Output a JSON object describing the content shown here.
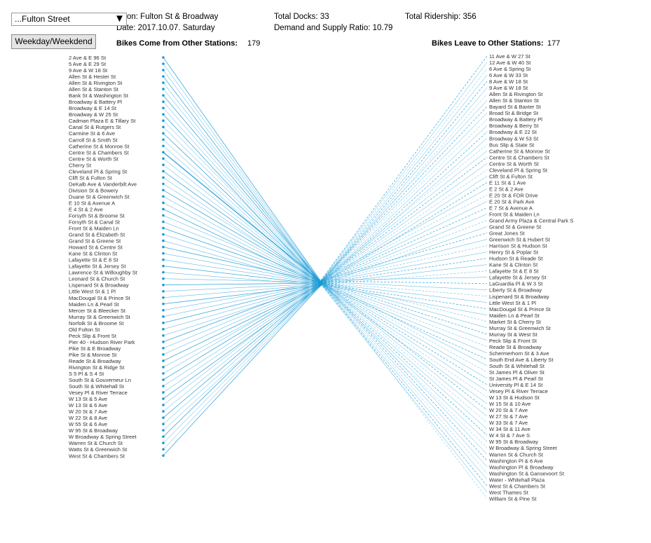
{
  "controls": {
    "station_select_value": "...Fulton Street",
    "dropdown_arrow": "▼",
    "toggle_button_label": "Weekday/Weekdend"
  },
  "info": {
    "station_line": "on: Fulton St & Broadway",
    "date_line": "Date: 2017.10.07. Saturday",
    "docks_line": "Total Docks: 33",
    "ratio_line": "Demand and Supply Ratio: 10.79",
    "ridership_line": "Total Ridership: 356"
  },
  "panels": {
    "incoming_header": "Bikes Come from Other Stations:",
    "incoming_count": "179",
    "outgoing_header": "Bikes Leave to Other Stations:",
    "outgoing_count": "177"
  },
  "colors": {
    "line": "#1a9bd6",
    "dot": "#1a9bd6"
  },
  "incoming_stations": [
    "2 Ave & E 96 St",
    "5 Ave & E 29 St",
    "9 Ave & W 18 St",
    "Allen St & Hester St",
    "Allen St & Rivington St",
    "Allen St & Stanton St",
    "Bank St & Washington St",
    "Broadway & Battery Pl",
    "Broadway & E 14 St",
    "Broadway & W 25 St",
    "Cadman Plaza E & Tillary St",
    "Canal St & Rutgers St",
    "Carmine St & 6 Ave",
    "Carroll St & Smith St",
    "Catherine St & Monroe St",
    "Centre St & Chambers St",
    "Centre St & Worth St",
    "Cherry St",
    "Cleveland Pl & Spring St",
    "Clift St & Fulton St",
    "DeKalb Ave & Vanderbilt Ave",
    "Division St & Bowery",
    "Duane St & Greenwich St",
    "E 10 St & Avenue A",
    "E 4 St & 2 Ave",
    "Forsyth St & Broome St",
    "Forsyth St & Canal St",
    "Front St & Maiden Ln",
    "Grand St & Elizabeth St",
    "Grand St & Greene St",
    "Howard St & Centre St",
    "Kane St & Clinton St",
    "Lafayette St & E 8 St",
    "Lafayette St & Jersey St",
    "Lawrence St & Willoughby St",
    "Leonard St & Church St",
    "Lispenard St & Broadway",
    "Little West St & 1 Pl",
    "MacDougal St & Prince St",
    "Maiden Ln & Pearl St",
    "Mercer St & Bleecker St",
    "Murray St & Greenwich St",
    "Norfolk St & Broome St",
    "Old Fulton St",
    "Peck Slip & Front St",
    "Pier 40 - Hudson River Park",
    "Pike St & E Broadway",
    "Pike St & Monroe St",
    "Reade St & Broadway",
    "Rivington St & Ridge St",
    "S 5 Pl & S 4 St",
    "South St & Gouverneur Ln",
    "South St & Whitehall St",
    "Vesey Pl & River Terrace",
    "W 13 St & 5 Ave",
    "W 13 St & 6 Ave",
    "W 20 St & 7 Ave",
    "W 22 St & 8 Ave",
    "W 55 St & 6 Ave",
    "W 95 St & Broadway",
    "W Broadway & Spring Street",
    "Warren St & Church St",
    "Watts St & Greenwich St",
    "West St & Chambers St"
  ],
  "outgoing_stations": [
    "11 Ave & W 27 St",
    "12 Ave & W 40 St",
    "6 Ave & Spring St",
    "6 Ave & W 33 St",
    "8 Ave & W 18 St",
    "9 Ave & W 18 St",
    "Allen St & Rivington St",
    "Allen St & Stanton St",
    "Bayard St & Baxter St",
    "Broad St & Bridge St",
    "Broadway & Battery Pl",
    "Broadway & Berry St",
    "Broadway & E 22 St",
    "Broadway & W 53 St",
    "Bus Slip & State St",
    "Catherine St & Monroe St",
    "Centre St & Chambers St",
    "Centre St & Worth St",
    "Cleveland Pl & Spring St",
    "Clift St & Fulton St",
    "E 11 St & 1 Ave",
    "E 2 St & 2 Ave",
    "E 20 St & FDR Drive",
    "E 20 St & Park Ave",
    "E 7 St & Avenue A",
    "Front St & Maiden Ln",
    "Grand Army Plaza & Central Park S",
    "Grand St & Greene St",
    "Great Jones St",
    "Greenwich St & Hubert St",
    "Harrison St & Hudson St",
    "Henry St & Poplar St",
    "Hudson St & Reade St",
    "Kane St & Clinton St",
    "Lafayette St & E 8 St",
    "Lafayette St & Jersey St",
    "LaGuardia Pl & W 3 St",
    "Liberty St & Broadway",
    "Lispenard St & Broadway",
    "Little West St & 1 Pl",
    "MacDougal St & Prince St",
    "Maiden Ln & Pearl St",
    "Market St & Cherry St",
    "Murray St & Greenwich St",
    "Murray St & West St",
    "Peck Slip & Front St",
    "Reade St & Broadway",
    "Schermerhorn St & 3 Ave",
    "South End Ave & Liberty St",
    "South St & Whitehall St",
    "St James Pl & Oliver St",
    "St James Pl & Pearl St",
    "University Pl & E 14 St",
    "Vesey Pl & River Terrace",
    "W 13 St & Hudson St",
    "W 15 St & 10 Ave",
    "W 20 St & 7 Ave",
    "W 27 St & 7 Ave",
    "W 33 St & 7 Ave",
    "W 34 St & 11 Ave",
    "W 4 St & 7 Ave S",
    "W 95 St & Broadway",
    "W Broadway & Spring Street",
    "Warren St & Church St",
    "Washington Pl & 6 Ave",
    "Washington Pl & Broadway",
    "Washington St & Gansevoort St",
    "Water - Whitehall Plaza",
    "West St & Chambers St",
    "West Thames St",
    "William St & Pine St"
  ]
}
